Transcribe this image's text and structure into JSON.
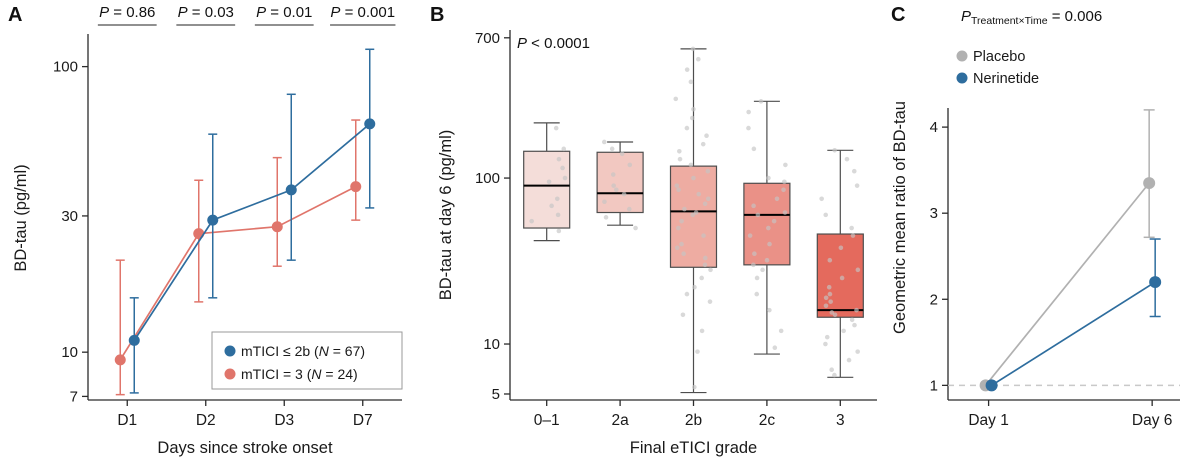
{
  "figure": {
    "background": "#ffffff",
    "panel_labels": {
      "a": "A",
      "b": "B",
      "c": "C"
    }
  },
  "chart_data": [
    {
      "id": "panel_a",
      "type": "line",
      "panel_label": "A",
      "xlabel": "Days since stroke onset",
      "ylabel": "BD-tau (pg/ml)",
      "x_categories": [
        "D1",
        "D2",
        "D3",
        "D7"
      ],
      "y_scale": "log",
      "ylim": [
        6.8,
        128
      ],
      "y_ticks": [
        7,
        10,
        30,
        100
      ],
      "p_values": [
        "P = 0.86",
        "P = 0.03",
        "P = 0.01",
        "P = 0.001"
      ],
      "series": [
        {
          "name": "mTICI ≤ 2b (N = 67)",
          "color": "#2e6d9e",
          "values": [
            11,
            29,
            37,
            63
          ],
          "ci_low": [
            7.2,
            15.5,
            21,
            32
          ],
          "ci_high": [
            15.5,
            58,
            80,
            115
          ]
        },
        {
          "name": "mTICI = 3 (N = 24)",
          "color": "#e0756b",
          "values": [
            9.4,
            26,
            27.5,
            38
          ],
          "ci_low": [
            7.1,
            15,
            20,
            29
          ],
          "ci_high": [
            21,
            40,
            48,
            65
          ]
        }
      ],
      "legend": true
    },
    {
      "id": "panel_b",
      "type": "box",
      "panel_label": "B",
      "annotation": {
        "p": "P",
        "rest": " < 0.0001"
      },
      "xlabel": "Final eTICI grade",
      "ylabel": "BD-tau at day 6 (pg/ml)",
      "categories": [
        "0–1",
        "2a",
        "2b",
        "2c",
        "3"
      ],
      "y_scale": "log",
      "ylim": [
        4.6,
        780
      ],
      "y_ticks": [
        5,
        10,
        100,
        700
      ],
      "boxes": [
        {
          "lo": 42,
          "q1": 50,
          "median": 90,
          "q3": 145,
          "hi": 215,
          "color": "#f4ddd9"
        },
        {
          "lo": 52,
          "q1": 62,
          "median": 81,
          "q3": 143,
          "hi": 165,
          "color": "#f2c8c1"
        },
        {
          "lo": 5.1,
          "q1": 29,
          "median": 63,
          "q3": 118,
          "hi": 600,
          "color": "#eeaca2"
        },
        {
          "lo": 8.7,
          "q1": 30,
          "median": 60,
          "q3": 93,
          "hi": 290,
          "color": "#ea9187"
        },
        {
          "lo": 6.3,
          "q1": 14.5,
          "median": 16,
          "q3": 46,
          "hi": 147,
          "color": "#e46a5d"
        }
      ],
      "points": [
        [
          48,
          55,
          60,
          68,
          75,
          95,
          100,
          115,
          130,
          150,
          200
        ],
        [
          50,
          58,
          65,
          72,
          80,
          85,
          90,
          105,
          120,
          140,
          150,
          165
        ],
        [
          5.5,
          9,
          12,
          15,
          18,
          20,
          22,
          25,
          28,
          30,
          33,
          35,
          38,
          40,
          45,
          50,
          55,
          60,
          62,
          65,
          70,
          75,
          80,
          85,
          90,
          100,
          110,
          120,
          130,
          145,
          160,
          180,
          200,
          230,
          260,
          300,
          380,
          450,
          520,
          600
        ],
        [
          9.5,
          12,
          16,
          20,
          25,
          28,
          30,
          32,
          35,
          40,
          45,
          50,
          55,
          60,
          62,
          68,
          75,
          85,
          95,
          100,
          120,
          150,
          200,
          250,
          290
        ],
        [
          6.5,
          7,
          8,
          9,
          10,
          11,
          12,
          13,
          14,
          15,
          15.5,
          16,
          17,
          18,
          19,
          20,
          22,
          25,
          28,
          32,
          38,
          45,
          50,
          60,
          75,
          90,
          110,
          130,
          147
        ]
      ]
    },
    {
      "id": "panel_c",
      "type": "line",
      "panel_label": "C",
      "annotation": {
        "p": "P",
        "sub": "Treatment×Time",
        "rest": " = 0.006"
      },
      "xlabel": "",
      "ylabel": "Geometric mean ratio of BD-tau",
      "x_categories": [
        "Day 1",
        "Day 6"
      ],
      "y_scale": "linear",
      "ylim": [
        0.83,
        5.07
      ],
      "y_ticks": [
        1,
        2,
        3,
        4
      ],
      "reference_line": 1,
      "series": [
        {
          "name": "Placebo",
          "color": "#b1b1b1",
          "values": [
            1,
            3.35
          ],
          "ci_low": [
            null,
            2.72
          ],
          "ci_high": [
            null,
            4.2
          ]
        },
        {
          "name": "Nerinetide",
          "color": "#2e6d9e",
          "values": [
            1,
            2.2
          ],
          "ci_low": [
            null,
            1.8
          ],
          "ci_high": [
            null,
            2.7
          ]
        }
      ],
      "legend": true
    }
  ]
}
